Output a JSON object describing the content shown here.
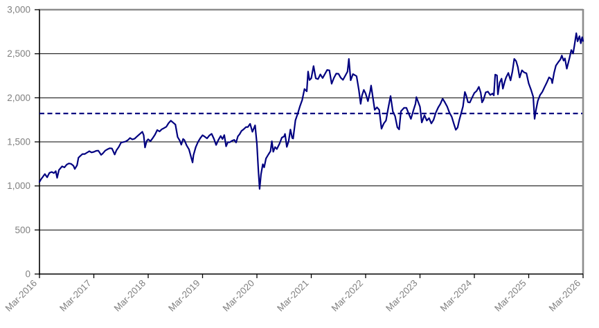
{
  "chart_data": {
    "type": "line",
    "title": "",
    "xlabel": "",
    "ylabel": "",
    "grid": true,
    "legend_position": "none",
    "background": "#ffffff",
    "plot_border": {
      "top_right_color": "#8c8c8c",
      "axis_color": "#000000",
      "gridline_color": "#000000"
    },
    "tick_label_color": "#808080",
    "ylim": [
      0,
      3000
    ],
    "y_ticks": [
      0,
      500,
      1000,
      1500,
      2000,
      2500,
      3000
    ],
    "y_tick_labels": [
      "0",
      "500",
      "1,000",
      "1,500",
      "2,000",
      "2,500",
      "3,000"
    ],
    "x_unit": "months after Mar-2016",
    "xlim_months": [
      0,
      120
    ],
    "x_tick_months": [
      0,
      12,
      24,
      36,
      48,
      60,
      72,
      84,
      96,
      108,
      120
    ],
    "x_tick_labels": [
      "Mar-2016",
      "Mar-2017",
      "Mar-2018",
      "Mar-2019",
      "Mar-2020",
      "Mar-2021",
      "Mar-2022",
      "Mar-2023",
      "Mar-2024",
      "Mar-2025",
      "Mar-2026"
    ],
    "reference_line": {
      "name": "dashed-reference-level",
      "value": 1822,
      "color": "#000080",
      "style": "dashed"
    },
    "series": [
      {
        "name": "index-level",
        "color": "#000080",
        "style": "solid",
        "points": [
          [
            0,
            1045
          ],
          [
            0.4,
            1080
          ],
          [
            0.7,
            1100
          ],
          [
            1.2,
            1135
          ],
          [
            1.7,
            1098
          ],
          [
            2.2,
            1148
          ],
          [
            2.7,
            1158
          ],
          [
            3.2,
            1145
          ],
          [
            3.6,
            1168
          ],
          [
            3.9,
            1092
          ],
          [
            4.3,
            1180
          ],
          [
            5,
            1222
          ],
          [
            5.5,
            1210
          ],
          [
            6,
            1242
          ],
          [
            6.5,
            1255
          ],
          [
            7,
            1250
          ],
          [
            7.5,
            1228
          ],
          [
            7.8,
            1192
          ],
          [
            8.3,
            1235
          ],
          [
            8.6,
            1320
          ],
          [
            9,
            1340
          ],
          [
            9.5,
            1362
          ],
          [
            10,
            1362
          ],
          [
            10.5,
            1378
          ],
          [
            11,
            1394
          ],
          [
            11.5,
            1380
          ],
          [
            12,
            1386
          ],
          [
            12.5,
            1398
          ],
          [
            13,
            1400
          ],
          [
            13.6,
            1352
          ],
          [
            14,
            1370
          ],
          [
            14.5,
            1400
          ],
          [
            15,
            1415
          ],
          [
            15.5,
            1428
          ],
          [
            16,
            1425
          ],
          [
            16.6,
            1356
          ],
          [
            17,
            1405
          ],
          [
            17.5,
            1442
          ],
          [
            18,
            1491
          ],
          [
            18.5,
            1498
          ],
          [
            19,
            1503
          ],
          [
            19.5,
            1520
          ],
          [
            20,
            1544
          ],
          [
            20.5,
            1528
          ],
          [
            21,
            1536
          ],
          [
            21.5,
            1560
          ],
          [
            22.7,
            1615
          ],
          [
            23,
            1575
          ],
          [
            23.3,
            1436
          ],
          [
            23.7,
            1512
          ],
          [
            24,
            1529
          ],
          [
            24.5,
            1508
          ],
          [
            25,
            1542
          ],
          [
            25.5,
            1582
          ],
          [
            26,
            1634
          ],
          [
            26.5,
            1618
          ],
          [
            27,
            1643
          ],
          [
            27.5,
            1656
          ],
          [
            28,
            1671
          ],
          [
            28.5,
            1712
          ],
          [
            29,
            1740
          ],
          [
            29.5,
            1718
          ],
          [
            30,
            1696
          ],
          [
            30.5,
            1555
          ],
          [
            31,
            1511
          ],
          [
            31.3,
            1468
          ],
          [
            31.7,
            1533
          ],
          [
            32,
            1520
          ],
          [
            32.5,
            1458
          ],
          [
            33,
            1415
          ],
          [
            33.8,
            1266
          ],
          [
            34,
            1349
          ],
          [
            34.5,
            1440
          ],
          [
            35,
            1499
          ],
          [
            35.5,
            1542
          ],
          [
            36,
            1575
          ],
          [
            36.5,
            1558
          ],
          [
            37,
            1539
          ],
          [
            37.5,
            1572
          ],
          [
            38,
            1591
          ],
          [
            38.5,
            1535
          ],
          [
            39,
            1465
          ],
          [
            39.5,
            1522
          ],
          [
            40,
            1567
          ],
          [
            40.4,
            1532
          ],
          [
            40.8,
            1577
          ],
          [
            41.2,
            1450
          ],
          [
            41.6,
            1498
          ],
          [
            42,
            1495
          ],
          [
            42.5,
            1512
          ],
          [
            43,
            1523
          ],
          [
            43.4,
            1492
          ],
          [
            43.8,
            1562
          ],
          [
            44.2,
            1588
          ],
          [
            44.6,
            1625
          ],
          [
            45,
            1640
          ],
          [
            45.6,
            1668
          ],
          [
            46,
            1668
          ],
          [
            46.5,
            1705
          ],
          [
            47,
            1614
          ],
          [
            47.6,
            1688
          ],
          [
            48,
            1476
          ],
          [
            48.3,
            1190
          ],
          [
            48.6,
            966
          ],
          [
            48.9,
            1132
          ],
          [
            49.3,
            1246
          ],
          [
            49.6,
            1211
          ],
          [
            50,
            1311
          ],
          [
            50.5,
            1355
          ],
          [
            51,
            1394
          ],
          [
            51.3,
            1507
          ],
          [
            51.6,
            1388
          ],
          [
            52,
            1441
          ],
          [
            52.4,
            1418
          ],
          [
            53,
            1480
          ],
          [
            53.5,
            1548
          ],
          [
            54,
            1562
          ],
          [
            54.2,
            1590
          ],
          [
            54.6,
            1443
          ],
          [
            55,
            1508
          ],
          [
            55.4,
            1640
          ],
          [
            55.8,
            1543
          ],
          [
            56,
            1538
          ],
          [
            56.5,
            1744
          ],
          [
            57,
            1820
          ],
          [
            57.5,
            1902
          ],
          [
            58,
            1975
          ],
          [
            58.5,
            2100
          ],
          [
            59,
            2073
          ],
          [
            59.3,
            2299
          ],
          [
            59.6,
            2201
          ],
          [
            60,
            2221
          ],
          [
            60.5,
            2360
          ],
          [
            61,
            2221
          ],
          [
            61.5,
            2212
          ],
          [
            62,
            2266
          ],
          [
            62.5,
            2224
          ],
          [
            63,
            2269
          ],
          [
            63.5,
            2316
          ],
          [
            64,
            2311
          ],
          [
            64.5,
            2160
          ],
          [
            65,
            2226
          ],
          [
            65.5,
            2274
          ],
          [
            66,
            2273
          ],
          [
            66.5,
            2228
          ],
          [
            67,
            2204
          ],
          [
            67.5,
            2251
          ],
          [
            68,
            2297
          ],
          [
            68.3,
            2442
          ],
          [
            68.7,
            2199
          ],
          [
            69.2,
            2270
          ],
          [
            70,
            2245
          ],
          [
            70.5,
            2090
          ],
          [
            70.9,
            1931
          ],
          [
            71.2,
            2028
          ],
          [
            71.6,
            2090
          ],
          [
            72,
            2048
          ],
          [
            72.5,
            1962
          ],
          [
            73,
            2070
          ],
          [
            73.2,
            2139
          ],
          [
            74,
            1864
          ],
          [
            74.5,
            1892
          ],
          [
            75,
            1864
          ],
          [
            75.5,
            1649
          ],
          [
            76,
            1708
          ],
          [
            76.5,
            1742
          ],
          [
            77,
            1885
          ],
          [
            77.5,
            2021
          ],
          [
            78,
            1845
          ],
          [
            78.5,
            1792
          ],
          [
            79,
            1665
          ],
          [
            79.4,
            1641
          ],
          [
            79.8,
            1848
          ],
          [
            80.5,
            1886
          ],
          [
            81,
            1886
          ],
          [
            81.5,
            1822
          ],
          [
            82,
            1761
          ],
          [
            82.5,
            1850
          ],
          [
            83,
            1932
          ],
          [
            83.2,
            2007
          ],
          [
            84,
            1897
          ],
          [
            84.4,
            1720
          ],
          [
            85,
            1802
          ],
          [
            85.5,
            1742
          ],
          [
            86,
            1769
          ],
          [
            86.5,
            1709
          ],
          [
            87,
            1750
          ],
          [
            87.5,
            1832
          ],
          [
            88,
            1889
          ],
          [
            88.5,
            1930
          ],
          [
            89,
            1990
          ],
          [
            89.5,
            1948
          ],
          [
            90,
            1900
          ],
          [
            90.5,
            1832
          ],
          [
            91,
            1785
          ],
          [
            91.5,
            1700
          ],
          [
            91.9,
            1637
          ],
          [
            92.3,
            1662
          ],
          [
            92.7,
            1752
          ],
          [
            93,
            1809
          ],
          [
            93.5,
            1902
          ],
          [
            93.9,
            2066
          ],
          [
            94.2,
            2027
          ],
          [
            94.6,
            1950
          ],
          [
            95,
            1947
          ],
          [
            95.5,
            2002
          ],
          [
            96,
            2055
          ],
          [
            96.5,
            2078
          ],
          [
            97,
            2124
          ],
          [
            97.4,
            2058
          ],
          [
            97.7,
            1948
          ],
          [
            98,
            1974
          ],
          [
            98.5,
            2062
          ],
          [
            99,
            2070
          ],
          [
            99.5,
            2032
          ],
          [
            100,
            2048
          ],
          [
            100.3,
            2027
          ],
          [
            100.6,
            2263
          ],
          [
            101,
            2254
          ],
          [
            101.2,
            2039
          ],
          [
            101.6,
            2172
          ],
          [
            102,
            2218
          ],
          [
            102.3,
            2103
          ],
          [
            102.7,
            2182
          ],
          [
            103,
            2230
          ],
          [
            103.5,
            2282
          ],
          [
            104,
            2197
          ],
          [
            104.4,
            2300
          ],
          [
            104.8,
            2442
          ],
          [
            105.2,
            2418
          ],
          [
            105.6,
            2350
          ],
          [
            106,
            2230
          ],
          [
            106.5,
            2312
          ],
          [
            107,
            2288
          ],
          [
            107.5,
            2278
          ],
          [
            108,
            2163
          ],
          [
            108.5,
            2092
          ],
          [
            109,
            2012
          ],
          [
            109.3,
            1761
          ],
          [
            109.6,
            1862
          ],
          [
            110,
            1964
          ],
          [
            110.5,
            2032
          ],
          [
            111,
            2066
          ],
          [
            111.5,
            2122
          ],
          [
            112,
            2175
          ],
          [
            112.5,
            2232
          ],
          [
            113,
            2212
          ],
          [
            113.2,
            2166
          ],
          [
            113.6,
            2282
          ],
          [
            114,
            2366
          ],
          [
            114.5,
            2402
          ],
          [
            115,
            2436
          ],
          [
            115.3,
            2480
          ],
          [
            115.7,
            2422
          ],
          [
            116,
            2447
          ],
          [
            116.4,
            2330
          ],
          [
            117,
            2452
          ],
          [
            117.4,
            2542
          ],
          [
            117.8,
            2502
          ],
          [
            118.1,
            2598
          ],
          [
            118.5,
            2733
          ],
          [
            118.8,
            2640
          ],
          [
            119.2,
            2700
          ],
          [
            119.5,
            2618
          ],
          [
            119.8,
            2688
          ],
          [
            120,
            2645
          ]
        ]
      }
    ]
  }
}
